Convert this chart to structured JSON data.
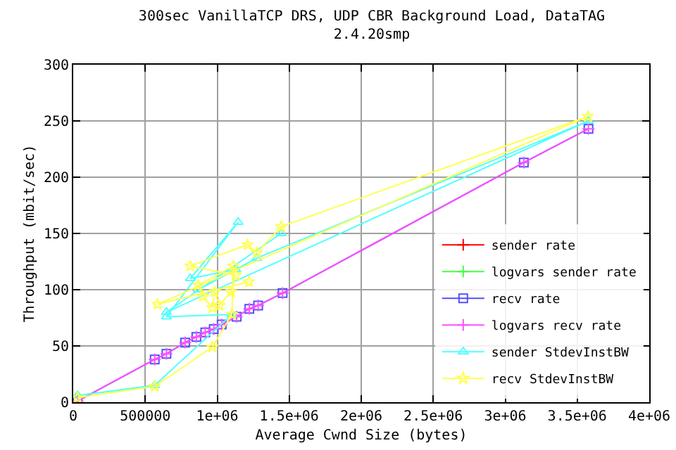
{
  "chart_data": {
    "type": "line",
    "title": "300sec VanillaTCP DRS, UDP CBR Background Load, DataTAG",
    "subtitle": "2.4.20smp",
    "xlabel": "Average Cwnd Size (bytes)",
    "ylabel": "Throughput (mbit/sec)",
    "xlim": [
      0,
      4000000
    ],
    "ylim": [
      0,
      300
    ],
    "xticks": [
      0,
      500000,
      {
        "value": 1000000,
        "label": "1e+06"
      },
      {
        "value": 1500000,
        "label": "1.5e+06"
      },
      {
        "value": 2000000,
        "label": "2e+06"
      },
      {
        "value": 2500000,
        "label": "2.5e+06"
      },
      {
        "value": 3000000,
        "label": "3e+06"
      },
      {
        "value": 3500000,
        "label": "3.5e+06"
      },
      {
        "value": 4000000,
        "label": "4e+06"
      }
    ],
    "yticks": [
      0,
      50,
      100,
      150,
      200,
      250,
      300
    ],
    "grid": true,
    "legend": "bottom right",
    "series": [
      {
        "name": "sender rate",
        "color": "#ff0000",
        "marker": "cross"
      },
      {
        "name": "logvars sender rate",
        "color": "#44ff44",
        "marker": "cross"
      },
      {
        "name": "recv rate",
        "color": "#5050ff",
        "marker": "square",
        "x": [
          30000,
          566000,
          647000,
          777000,
          855000,
          917000,
          976000,
          1031000,
          1135000,
          1223000,
          1284000,
          1454000,
          3129000,
          3578000
        ],
        "values": [
          1,
          38,
          43,
          53,
          58,
          62,
          65,
          69,
          76,
          83,
          86,
          97,
          213,
          243
        ]
      },
      {
        "name": "logvars recv rate",
        "color": "#ff50ff",
        "marker": "cross",
        "x": [
          30000,
          566000,
          647000,
          777000,
          855000,
          917000,
          976000,
          1031000,
          1135000,
          1223000,
          1284000,
          1454000,
          3129000,
          3578000
        ],
        "values": [
          1,
          38,
          43,
          53,
          58,
          62,
          65,
          69,
          76,
          83,
          86,
          97,
          213,
          243
        ]
      },
      {
        "name": "sender StdevInstBW",
        "color": "#50ffff",
        "marker": "triangle",
        "x": [
          30000,
          566000,
          1102000,
          647000,
          1145000,
          813000,
          1129000,
          868000,
          1275000,
          3578000,
          647000,
          1444000
        ],
        "values": [
          6,
          15,
          78,
          76,
          160,
          110,
          118,
          100,
          128,
          250,
          80,
          150
        ]
      },
      {
        "name": "recv StdevInstBW",
        "color": "#ffff50",
        "marker": "star",
        "x": [
          30000,
          566000,
          966000,
          1102000,
          1112000,
          868000,
          901000,
          966000,
          982000,
          1015000,
          1096000,
          1129000,
          813000,
          1210000,
          1275000,
          1444000,
          3574000,
          585000,
          1220000
        ],
        "values": [
          4,
          14,
          49,
          78,
          121,
          104,
          94,
          84,
          98,
          86,
          98,
          113,
          121,
          140,
          133,
          156,
          254,
          87,
          107
        ]
      }
    ]
  }
}
